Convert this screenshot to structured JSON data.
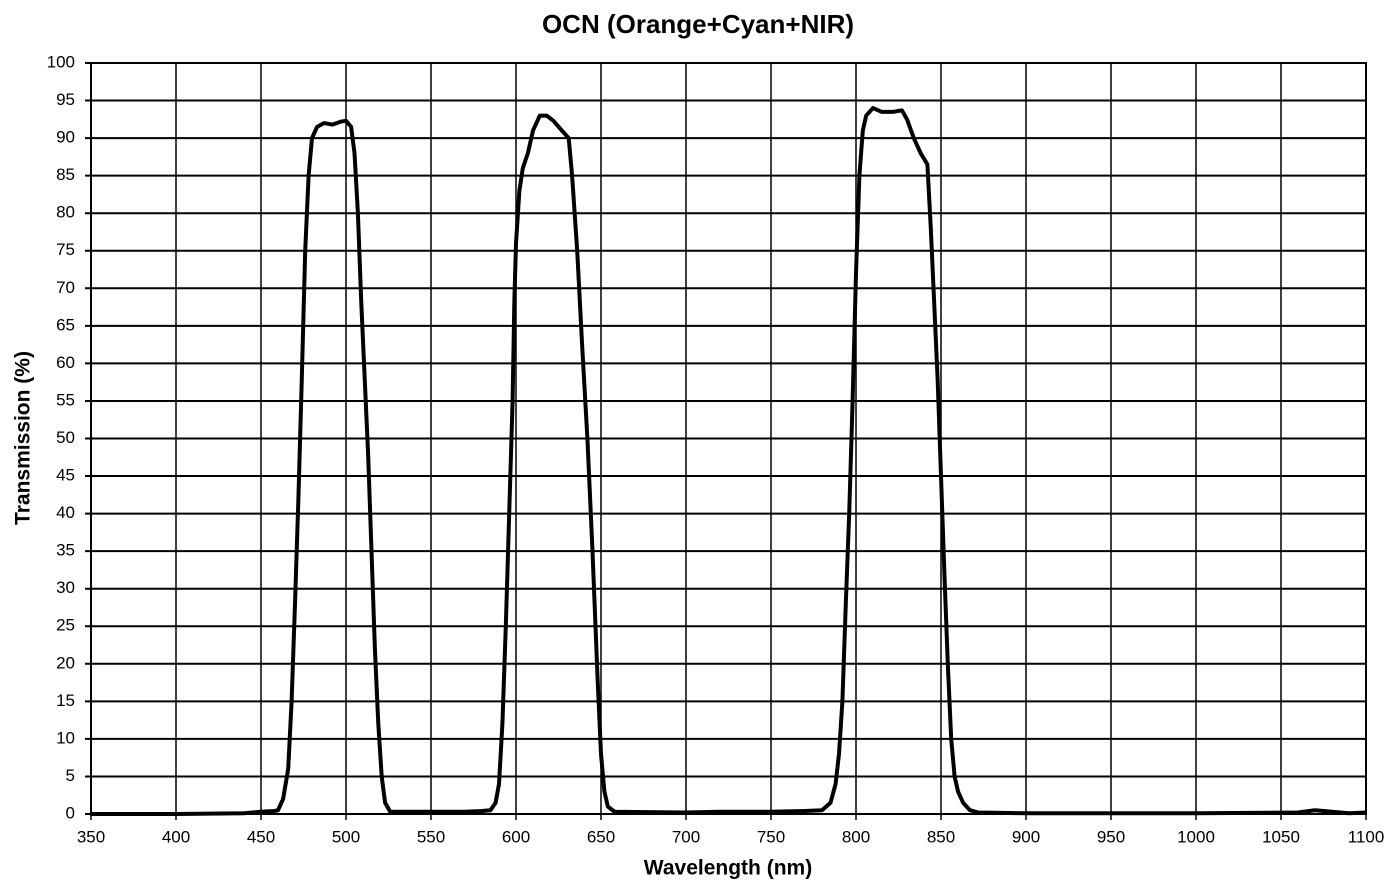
{
  "chart_data": {
    "type": "line",
    "title": "OCN (Orange+Cyan+NIR)",
    "x_label": "Wavelength (nm)",
    "y_label": "Transmission (%)",
    "xlim": [
      350,
      1100
    ],
    "ylim": [
      0,
      100
    ],
    "xticks": [
      350,
      400,
      450,
      500,
      550,
      600,
      650,
      700,
      750,
      800,
      850,
      900,
      950,
      1000,
      1050,
      1100
    ],
    "yticks": [
      0,
      5,
      10,
      15,
      20,
      25,
      30,
      35,
      40,
      45,
      50,
      55,
      60,
      65,
      70,
      75,
      80,
      85,
      90,
      95,
      100
    ],
    "grid": true,
    "x": [
      350,
      400,
      440,
      450,
      458,
      460,
      463,
      466,
      468,
      470,
      472,
      474,
      476,
      478,
      480,
      483,
      487,
      492,
      497,
      500,
      503,
      505,
      507,
      509,
      511,
      513,
      515,
      517,
      519,
      521,
      523,
      526,
      540,
      560,
      570,
      580,
      585,
      588,
      590,
      592,
      594,
      596,
      598,
      599,
      600,
      602,
      604,
      607,
      610,
      614,
      618,
      622,
      627,
      631,
      633,
      636,
      639,
      642,
      645,
      648,
      650,
      652,
      654,
      658,
      700,
      720,
      750,
      770,
      780,
      785,
      788,
      790,
      792,
      794,
      796,
      798,
      800,
      802,
      804,
      806,
      810,
      815,
      822,
      827,
      830,
      834,
      838,
      842,
      844,
      846,
      848,
      850,
      852,
      854,
      856,
      858,
      860,
      863,
      867,
      872,
      900,
      1000,
      1060,
      1070,
      1080,
      1090,
      1100
    ],
    "series": [
      {
        "color": "#000000",
        "values": [
          0,
          0,
          0.1,
          0.3,
          0.4,
          0.5,
          2,
          6,
          15,
          28,
          42,
          58,
          75,
          85,
          90,
          91.5,
          92,
          91.8,
          92.2,
          92.3,
          91.5,
          88,
          80,
          68,
          58,
          48,
          35,
          22,
          12,
          5,
          1.5,
          0.3,
          0.3,
          0.3,
          0.3,
          0.4,
          0.5,
          1.5,
          4,
          12,
          25,
          40,
          55,
          68,
          76,
          83,
          86,
          88,
          91,
          93,
          93,
          92.3,
          91,
          90,
          85,
          75,
          62,
          50,
          35,
          18,
          8,
          3,
          1,
          0.3,
          0.2,
          0.3,
          0.3,
          0.4,
          0.5,
          1.5,
          4,
          8,
          15,
          28,
          40,
          55,
          72,
          85,
          91,
          93,
          94,
          93.5,
          93.5,
          93.7,
          92.5,
          90,
          88,
          86.5,
          78,
          68,
          58,
          45,
          32,
          20,
          10,
          5,
          3,
          1.5,
          0.5,
          0.2,
          0.1,
          0.1,
          0.2,
          0.5,
          0.3,
          0.1,
          0.2
        ]
      }
    ]
  }
}
